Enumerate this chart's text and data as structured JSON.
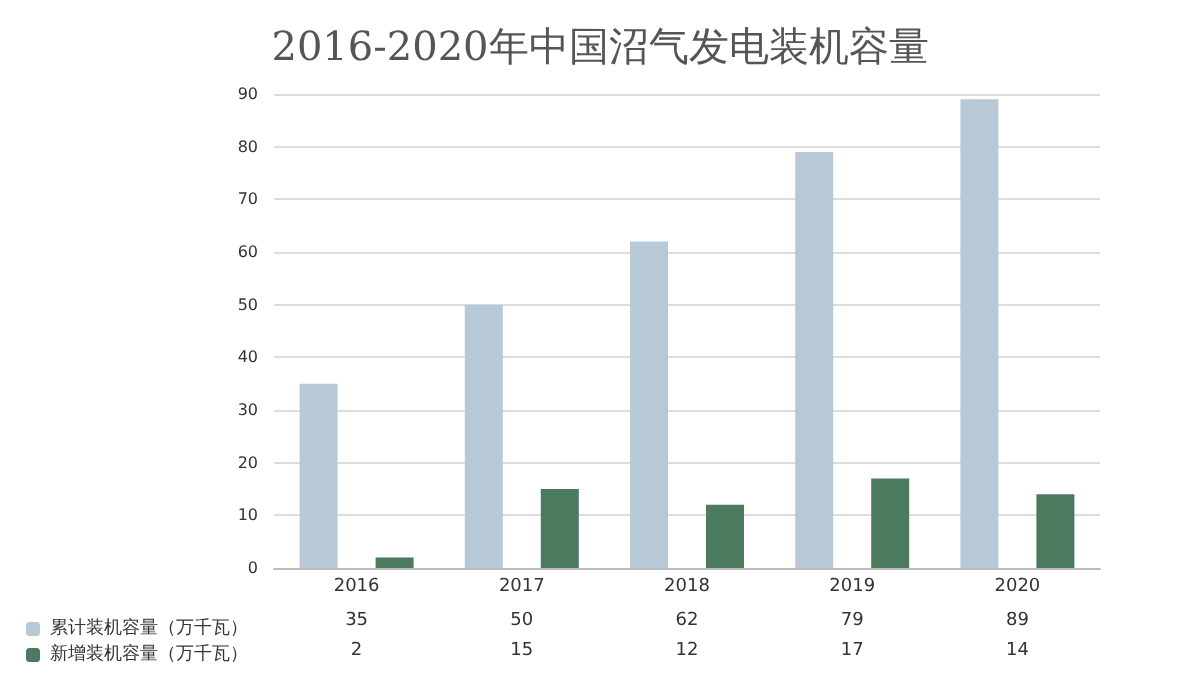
{
  "chart_data": {
    "type": "bar",
    "title": "2016-2020年中国沼气发电装机容量",
    "categories": [
      "2016",
      "2017",
      "2018",
      "2019",
      "2020"
    ],
    "series": [
      {
        "name": "累计装机容量（万千瓦）",
        "color": "#b7c9d6",
        "values": [
          35,
          50,
          62,
          79,
          89
        ]
      },
      {
        "name": "新增装机容量（万千瓦）",
        "color": "#4b7a5f",
        "values": [
          2,
          15,
          12,
          17,
          14
        ]
      }
    ],
    "ylim": [
      0,
      90
    ],
    "yticks": [
      0,
      10,
      20,
      30,
      40,
      50,
      60,
      70,
      80,
      90
    ],
    "grid": "y",
    "legend": "bottom",
    "data_labels": true
  }
}
